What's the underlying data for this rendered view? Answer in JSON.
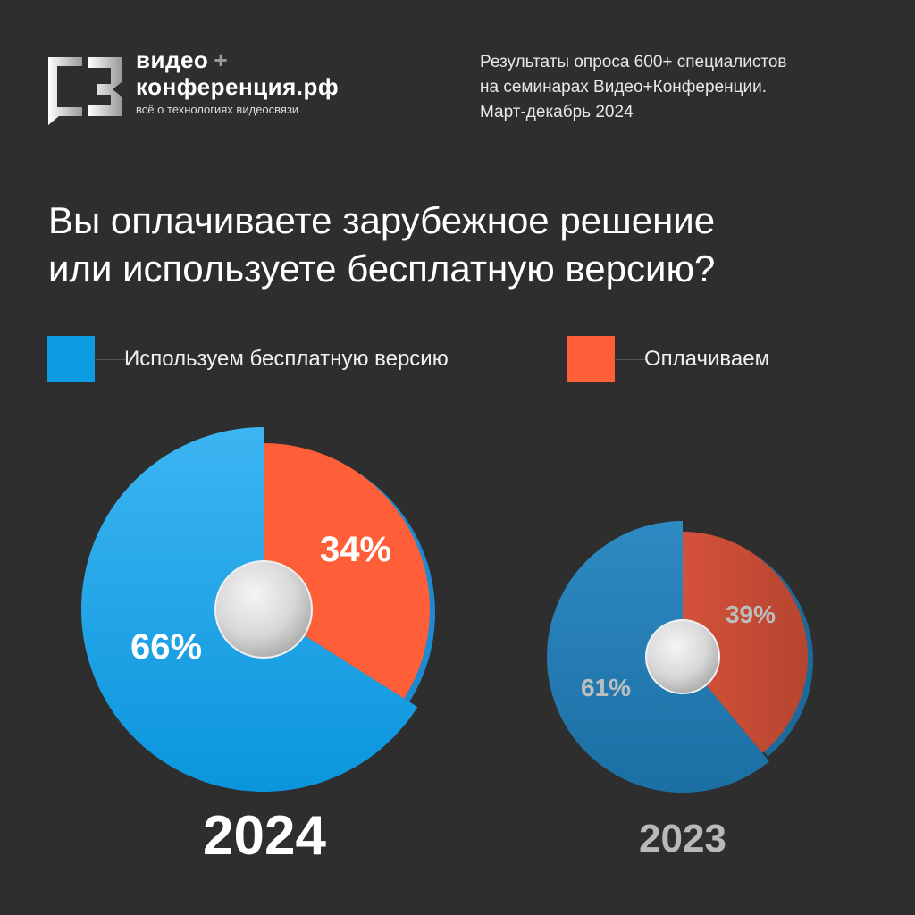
{
  "brand": {
    "line1": "видео",
    "plus": "+",
    "line2": "конференция.рф",
    "tagline": "всё о технологиях видеосвязи"
  },
  "survey_info": [
    "Результаты опроса 600+ специалистов",
    "на семинарах Видео+Конференции.",
    "Март-декабрь 2024"
  ],
  "question": [
    "Вы оплачиваете зарубежное решение",
    "или используете бесплатную версию?"
  ],
  "colors": {
    "free": "#0d9be2",
    "paid": "#ff5f38",
    "free_2023": "#1e78ad",
    "paid_2023": "#c24a32",
    "background": "#2e2e2e"
  },
  "chart_data": [
    {
      "type": "pie",
      "title": "2024",
      "categories": [
        "Используем бесплатную версию",
        "Оплачиваем"
      ],
      "values": [
        66,
        34
      ],
      "labels": [
        "66%",
        "34%"
      ],
      "legend": "top"
    },
    {
      "type": "pie",
      "title": "2023",
      "categories": [
        "Используем бесплатную версию",
        "Оплачиваем"
      ],
      "values": [
        61,
        39
      ],
      "labels": [
        "61%",
        "39%"
      ],
      "legend": "top"
    }
  ]
}
